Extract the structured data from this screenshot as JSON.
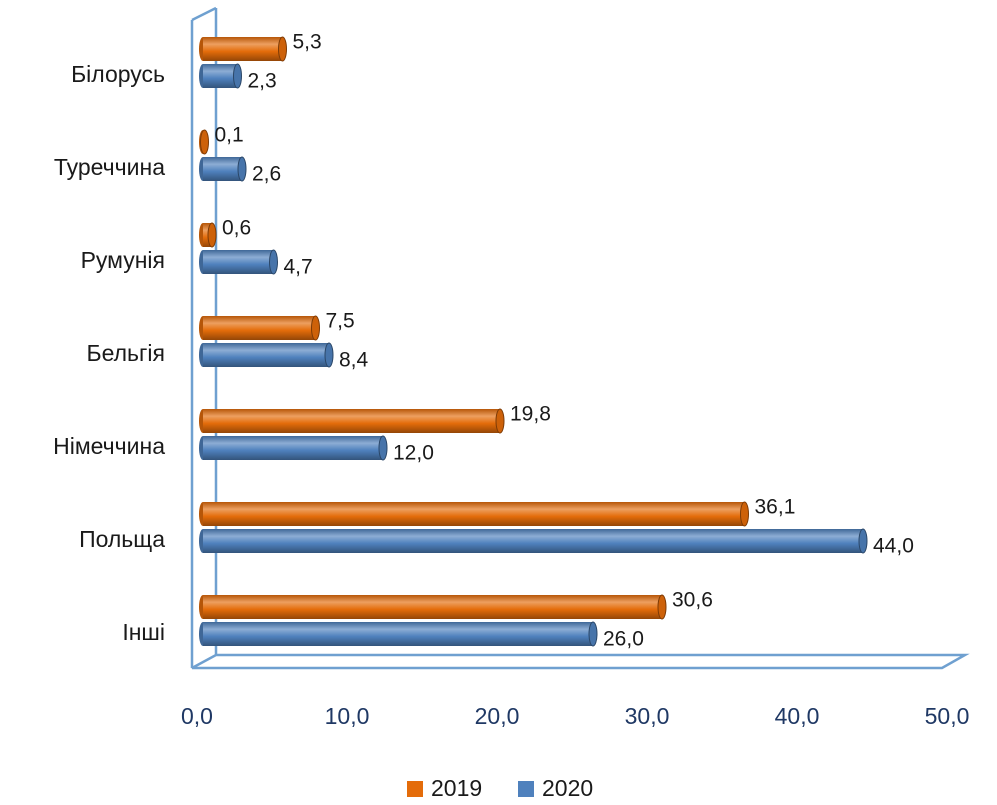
{
  "chart_data": {
    "type": "bar",
    "orientation": "horizontal",
    "categories": [
      "Білорусь",
      "Туреччина",
      "Румунія",
      "Бельгія",
      "Німеччина",
      "Польща",
      "Інші"
    ],
    "series": [
      {
        "name": "2019",
        "color": "#e46c0a",
        "values": [
          5.3,
          0.1,
          0.6,
          7.5,
          19.8,
          36.1,
          30.6
        ],
        "value_labels": [
          "5,3",
          "0,1",
          "0,6",
          "7,5",
          "19,8",
          "36,1",
          "30,6"
        ]
      },
      {
        "name": "2020",
        "color": "#4f81bd",
        "values": [
          2.3,
          2.6,
          4.7,
          8.4,
          12.0,
          44.0,
          26.0
        ],
        "value_labels": [
          "2,3",
          "2,6",
          "4,7",
          "8,4",
          "12,0",
          "44,0",
          "26,0"
        ]
      }
    ],
    "xlim": [
      0,
      50
    ],
    "xticks": [
      {
        "value": 0,
        "label": "0,0"
      },
      {
        "value": 10,
        "label": "10,0"
      },
      {
        "value": 20,
        "label": "20,0"
      },
      {
        "value": 30,
        "label": "30,0"
      },
      {
        "value": 40,
        "label": "40,0"
      },
      {
        "value": 50,
        "label": "50,0"
      }
    ],
    "legend": "bottom"
  }
}
